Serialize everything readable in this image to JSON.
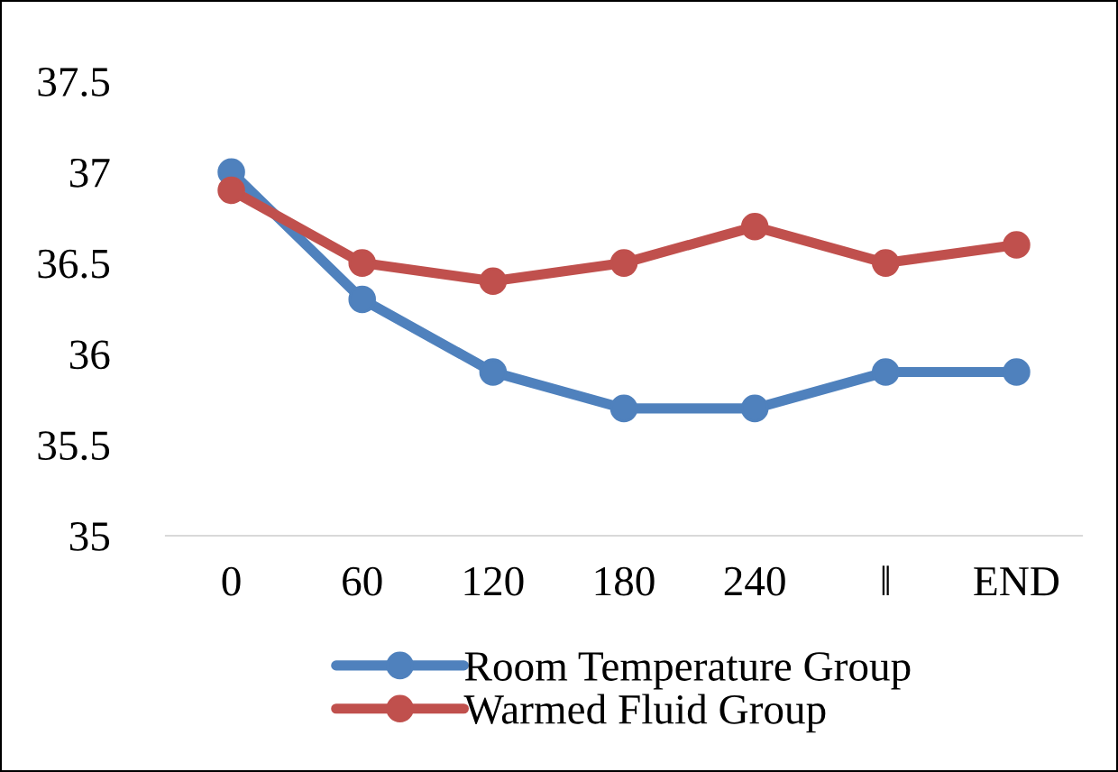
{
  "chart_data": {
    "type": "line",
    "categories": [
      "0",
      "60",
      "120",
      "180",
      "240",
      "‖",
      "END"
    ],
    "series": [
      {
        "name": "Room Temperature Group",
        "color": "#4f81bd",
        "values": [
          37,
          36.3,
          35.9,
          35.7,
          35.7,
          35.9,
          35.9
        ]
      },
      {
        "name": "Warmed Fluid Group",
        "color": "#c0504d",
        "values": [
          36.9,
          36.5,
          36.4,
          36.5,
          36.7,
          36.5,
          36.6
        ]
      }
    ],
    "ylim": [
      35,
      37.5
    ],
    "yticks": [
      35,
      35.5,
      36,
      36.5,
      37,
      37.5
    ],
    "marker": "circle",
    "line_style": "solid",
    "grid": false,
    "legend": "bottom"
  }
}
